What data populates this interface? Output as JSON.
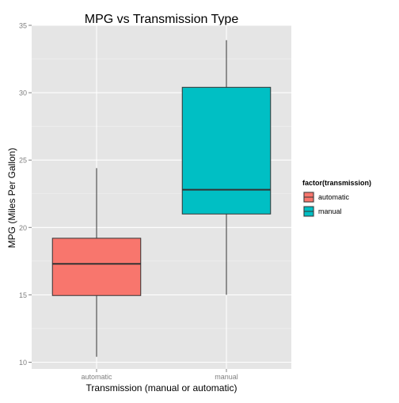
{
  "chart_data": {
    "type": "boxplot",
    "title": "MPG vs Transmission Type",
    "xlabel": "Transmission (manual or automatic)",
    "ylabel": "MPG (Miles Per Gallon)",
    "ylim": [
      9.5,
      35
    ],
    "yticks": [
      10,
      15,
      20,
      25,
      30,
      35
    ],
    "grid": true,
    "categories": [
      "automatic",
      "manual"
    ],
    "legend": {
      "title": "factor(transmission)",
      "position": "right",
      "entries": [
        "automatic",
        "manual"
      ]
    },
    "boxes": [
      {
        "category": "automatic",
        "min": 10.4,
        "q1": 14.95,
        "median": 17.3,
        "q3": 19.2,
        "max": 24.4,
        "color": "#F8766D"
      },
      {
        "category": "manual",
        "min": 15.0,
        "q1": 21.0,
        "median": 22.8,
        "q3": 30.4,
        "max": 33.9,
        "color": "#00BFC4"
      }
    ]
  }
}
